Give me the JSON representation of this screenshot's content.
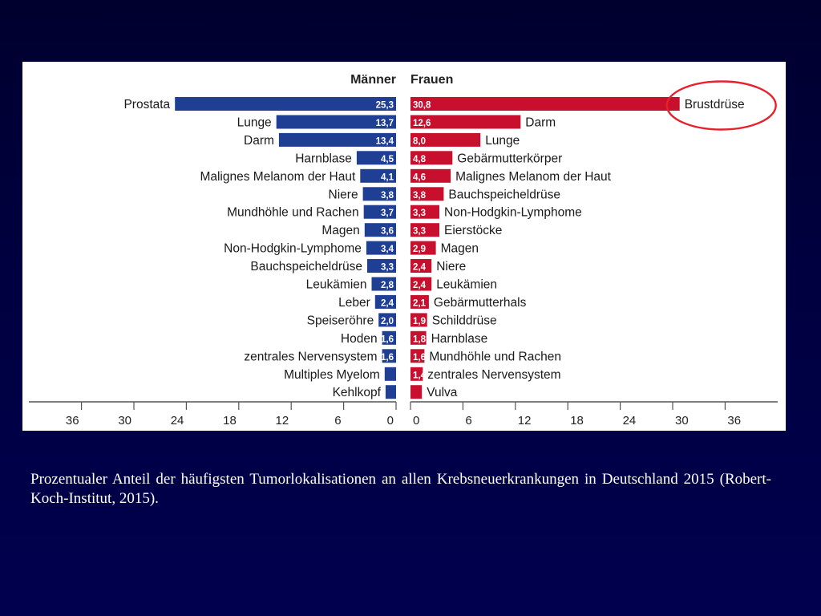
{
  "chart_data": {
    "type": "bar",
    "subtype": "back-to-back horizontal bar",
    "xlim": [
      0,
      36
    ],
    "xticks": [
      0,
      6,
      12,
      18,
      24,
      30,
      36
    ],
    "panels": [
      {
        "name": "Männer",
        "side": "left",
        "color": "#1f3f95",
        "categories": [
          "Prostata",
          "Lunge",
          "Darm",
          "Harnblase",
          "Malignes Melanom der Haut",
          "Niere",
          "Mundhöhle und Rachen",
          "Magen",
          "Non-Hodgkin-Lymphome",
          "Bauchspeicheldrüse",
          "Leukämien",
          "Leber",
          "Speiseröhre",
          "Hoden",
          "zentrales Nervensystem",
          "Multiples Myelom",
          "Kehlkopf"
        ],
        "values": [
          25.3,
          13.7,
          13.4,
          4.5,
          4.1,
          3.8,
          3.7,
          3.6,
          3.4,
          3.3,
          2.8,
          2.4,
          2.0,
          1.6,
          1.6,
          1.3,
          1.2
        ],
        "labels": [
          "25,3",
          "13,7",
          "13,4",
          "4,5",
          "4,1",
          "3,8",
          "3,7",
          "3,6",
          "3,4",
          "3,3",
          "2,8",
          "2,4",
          "2,0",
          "1,6",
          "1,6",
          "",
          ""
        ]
      },
      {
        "name": "Frauen",
        "side": "right",
        "color": "#c8102e",
        "categories": [
          "Brustdrüse",
          "Darm",
          "Lunge",
          "Gebärmutterkörper",
          "Malignes Melanom der Haut",
          "Bauchspeicheldrüse",
          "Non-Hodgkin-Lymphome",
          "Eierstöcke",
          "Magen",
          "Niere",
          "Leukämien",
          "Gebärmutterhals",
          "Schilddrüse",
          "Harnblase",
          "Mundhöhle und Rachen",
          "zentrales Nervensystem",
          "Vulva"
        ],
        "values": [
          30.8,
          12.6,
          8.0,
          4.8,
          4.6,
          3.8,
          3.3,
          3.3,
          2.9,
          2.4,
          2.4,
          2.1,
          1.9,
          1.8,
          1.6,
          1.4,
          1.3
        ],
        "labels": [
          "30,8",
          "12,6",
          "8,0",
          "4,8",
          "4,6",
          "3,8",
          "3,3",
          "3,3",
          "2,9",
          "2,4",
          "2,4",
          "2,1",
          "1,9",
          "1,8",
          "1,6",
          "1,4",
          ""
        ]
      }
    ],
    "annotation": {
      "type": "ellipse",
      "target": "Brustdrüse",
      "color": "#e8202a"
    }
  },
  "caption": "Prozentualer Anteil der häufigsten Tumorlokalisationen an allen Krebsneuerkrankungen in Deutschland 2015 (Robert-Koch-Institut, 2015)."
}
